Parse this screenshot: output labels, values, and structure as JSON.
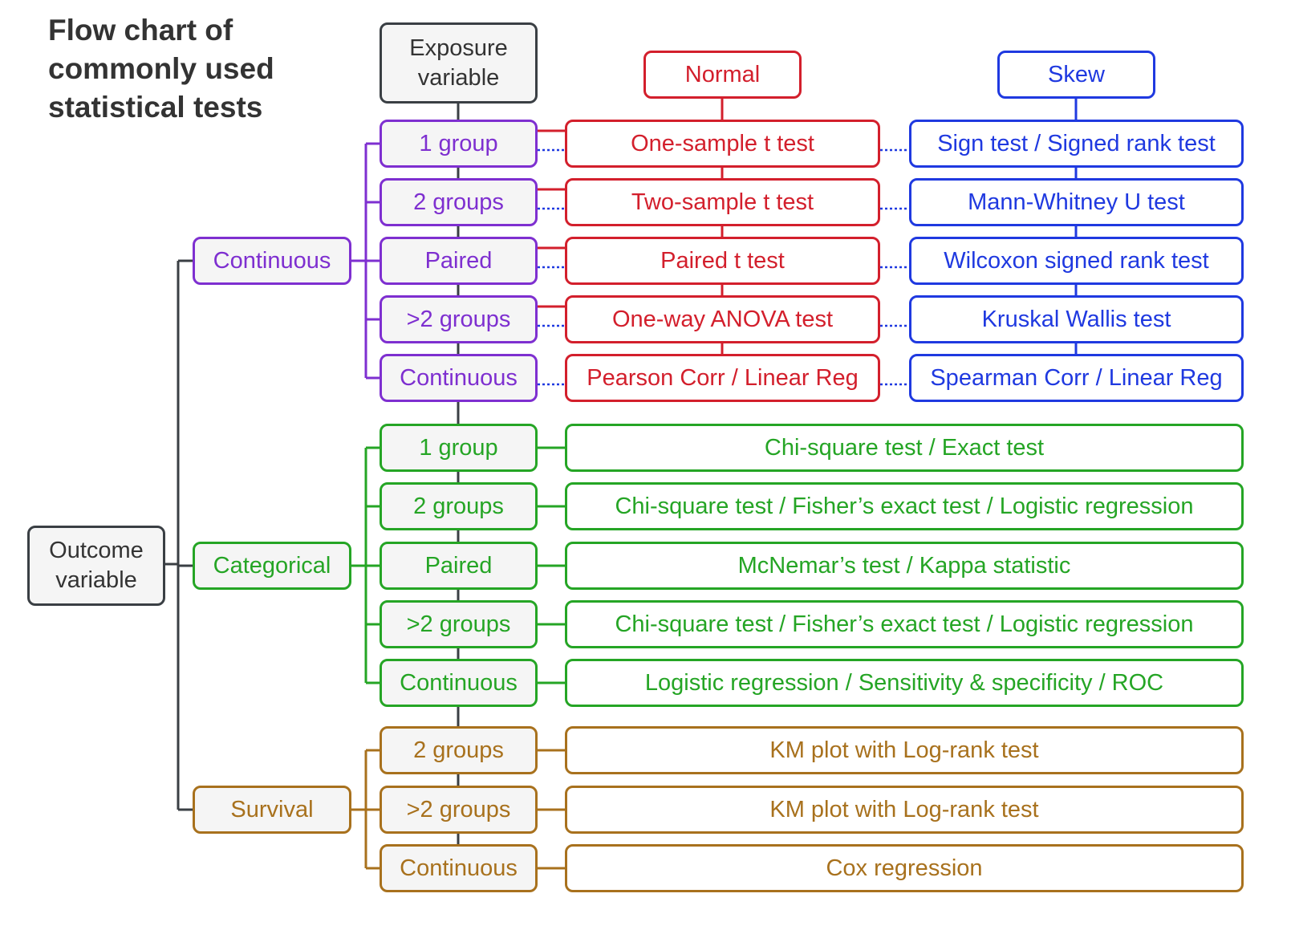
{
  "title": [
    "Flow chart of",
    "commonly used",
    "statistical tests"
  ],
  "outcome": [
    "Outcome",
    "variable"
  ],
  "exposure": [
    "Exposure",
    "variable"
  ],
  "normal_header": "Normal",
  "skew_header": "Skew",
  "colors": {
    "neutral": "#3a3f44",
    "continuous": "#7e2fd0",
    "normal": "#d31f2c",
    "skew": "#1f39e0",
    "categorical": "#25a525",
    "survival": "#a8711d"
  },
  "continuous": {
    "label": "Continuous",
    "groups": [
      "1 group",
      "2 groups",
      "Paired",
      ">2 groups",
      "Continuous"
    ],
    "normal_tests": [
      "One-sample t test",
      "Two-sample t test",
      "Paired t test",
      "One-way ANOVA test",
      "Pearson Corr / Linear Reg"
    ],
    "skew_tests": [
      "Sign test / Signed rank test",
      "Mann-Whitney U test",
      "Wilcoxon signed rank test",
      "Kruskal Wallis test",
      "Spearman Corr / Linear Reg"
    ]
  },
  "categorical": {
    "label": "Categorical",
    "groups": [
      "1 group",
      "2 groups",
      "Paired",
      ">2 groups",
      "Continuous"
    ],
    "tests": [
      "Chi-square test / Exact test",
      "Chi-square test / Fisher’s exact test / Logistic regression",
      "McNemar’s test / Kappa statistic",
      "Chi-square test / Fisher’s exact test / Logistic regression",
      "Logistic regression / Sensitivity & specificity / ROC"
    ]
  },
  "survival": {
    "label": "Survival",
    "groups": [
      "2 groups",
      ">2 groups",
      "Continuous"
    ],
    "tests": [
      "KM plot with Log-rank test",
      "KM plot with Log-rank test",
      "Cox regression"
    ]
  }
}
